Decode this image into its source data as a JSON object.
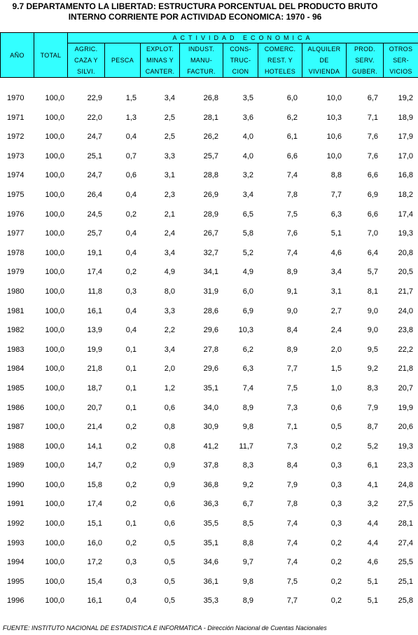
{
  "title": {
    "line1": "9.7 DEPARTAMENTO  LA LIBERTAD: ESTRUCTURA PORCENTUAL DEL PRODUCTO BRUTO",
    "line2": "INTERNO  CORRIENTE POR ACTIVIDAD ECONOMICA: 1970 - 96"
  },
  "header": {
    "year": "AÑO",
    "total": "TOTAL",
    "group": "ACTIVIDAD ECONOMICA",
    "columns": [
      {
        "l1": "AGRIC.",
        "l2": "CAZA Y",
        "l3": "SILVI."
      },
      {
        "l1": "",
        "l2": "PESCA",
        "l3": ""
      },
      {
        "l1": "EXPLOT.",
        "l2": "MINAS Y",
        "l3": "CANTER."
      },
      {
        "l1": "INDUST.",
        "l2": "MANU-",
        "l3": "FACTUR."
      },
      {
        "l1": "CONS-",
        "l2": "TRUC-",
        "l3": "CION"
      },
      {
        "l1": "COMERC.",
        "l2": "REST. Y",
        "l3": "HOTELES"
      },
      {
        "l1": "ALQUILER",
        "l2": "DE",
        "l3": "VIVIENDA"
      },
      {
        "l1": "PROD.",
        "l2": "SERV.",
        "l3": "GUBER."
      },
      {
        "l1": "OTROS",
        "l2": "SER-",
        "l3": "VICIOS"
      }
    ]
  },
  "rows": [
    [
      "1970",
      "100,0",
      "22,9",
      "1,5",
      "3,4",
      "26,8",
      "3,5",
      "6,0",
      "10,0",
      "6,7",
      "19,2"
    ],
    [
      "1971",
      "100,0",
      "22,0",
      "1,3",
      "2,5",
      "28,1",
      "3,6",
      "6,2",
      "10,3",
      "7,1",
      "18,9"
    ],
    [
      "1972",
      "100,0",
      "24,7",
      "0,4",
      "2,5",
      "26,2",
      "4,0",
      "6,1",
      "10,6",
      "7,6",
      "17,9"
    ],
    [
      "1973",
      "100,0",
      "25,1",
      "0,7",
      "3,3",
      "25,7",
      "4,0",
      "6,6",
      "10,0",
      "7,6",
      "17,0"
    ],
    [
      "1974",
      "100,0",
      "24,7",
      "0,6",
      "3,1",
      "28,8",
      "3,2",
      "7,4",
      "8,8",
      "6,6",
      "16,8"
    ],
    [
      "1975",
      "100,0",
      "26,4",
      "0,4",
      "2,3",
      "26,9",
      "3,4",
      "7,8",
      "7,7",
      "6,9",
      "18,2"
    ],
    [
      "1976",
      "100,0",
      "24,5",
      "0,2",
      "2,1",
      "28,9",
      "6,5",
      "7,5",
      "6,3",
      "6,6",
      "17,4"
    ],
    [
      "1977",
      "100,0",
      "25,7",
      "0,4",
      "2,4",
      "26,7",
      "5,8",
      "7,6",
      "5,1",
      "7,0",
      "19,3"
    ],
    [
      "1978",
      "100,0",
      "19,1",
      "0,4",
      "3,4",
      "32,7",
      "5,2",
      "7,4",
      "4,6",
      "6,4",
      "20,8"
    ],
    [
      "1979",
      "100,0",
      "17,4",
      "0,2",
      "4,9",
      "34,1",
      "4,9",
      "8,9",
      "3,4",
      "5,7",
      "20,5"
    ],
    [
      "1980",
      "100,0",
      "11,8",
      "0,3",
      "8,0",
      "31,9",
      "6,0",
      "9,1",
      "3,1",
      "8,1",
      "21,7"
    ],
    [
      "1981",
      "100,0",
      "16,1",
      "0,4",
      "3,3",
      "28,6",
      "6,9",
      "9,0",
      "2,7",
      "9,0",
      "24,0"
    ],
    [
      "1982",
      "100,0",
      "13,9",
      "0,4",
      "2,2",
      "29,6",
      "10,3",
      "8,4",
      "2,4",
      "9,0",
      "23,8"
    ],
    [
      "1983",
      "100,0",
      "19,9",
      "0,1",
      "3,4",
      "27,8",
      "6,2",
      "8,9",
      "2,0",
      "9,5",
      "22,2"
    ],
    [
      "1984",
      "100,0",
      "21,8",
      "0,1",
      "2,0",
      "29,6",
      "6,3",
      "7,7",
      "1,5",
      "9,2",
      "21,8"
    ],
    [
      "1985",
      "100,0",
      "18,7",
      "0,1",
      "1,2",
      "35,1",
      "7,4",
      "7,5",
      "1,0",
      "8,3",
      "20,7"
    ],
    [
      "1986",
      "100,0",
      "20,7",
      "0,1",
      "0,6",
      "34,0",
      "8,9",
      "7,3",
      "0,6",
      "7,9",
      "19,9"
    ],
    [
      "1987",
      "100,0",
      "21,4",
      "0,2",
      "0,8",
      "30,9",
      "9,8",
      "7,1",
      "0,5",
      "8,7",
      "20,6"
    ],
    [
      "1988",
      "100,0",
      "14,1",
      "0,2",
      "0,8",
      "41,2",
      "11,7",
      "7,3",
      "0,2",
      "5,2",
      "19,3"
    ],
    [
      "1989",
      "100,0",
      "14,7",
      "0,2",
      "0,9",
      "37,8",
      "8,3",
      "8,4",
      "0,3",
      "6,1",
      "23,3"
    ],
    [
      "1990",
      "100,0",
      "15,8",
      "0,2",
      "0,9",
      "36,8",
      "9,2",
      "7,9",
      "0,3",
      "4,1",
      "24,8"
    ],
    [
      "1991",
      "100,0",
      "17,4",
      "0,2",
      "0,6",
      "36,3",
      "6,7",
      "7,8",
      "0,3",
      "3,2",
      "27,5"
    ],
    [
      "1992",
      "100,0",
      "15,1",
      "0,1",
      "0,6",
      "35,5",
      "8,5",
      "7,4",
      "0,3",
      "4,4",
      "28,1"
    ],
    [
      "1993",
      "100,0",
      "16,0",
      "0,2",
      "0,5",
      "35,1",
      "8,8",
      "7,4",
      "0,2",
      "4,4",
      "27,4"
    ],
    [
      "1994",
      "100,0",
      "17,2",
      "0,3",
      "0,5",
      "34,6",
      "9,7",
      "7,4",
      "0,2",
      "4,6",
      "25,5"
    ],
    [
      "1995",
      "100,0",
      "15,4",
      "0,3",
      "0,5",
      "36,1",
      "9,8",
      "7,5",
      "0,2",
      "5,1",
      "25,1"
    ],
    [
      "1996",
      "100,0",
      "16,1",
      "0,4",
      "0,5",
      "35,3",
      "8,9",
      "7,7",
      "0,2",
      "5,1",
      "25,8"
    ]
  ],
  "footer": {
    "source_bold": "FUENTE: INSTITUTO NACIONAL DE ESTADISTICA E INFORMATICA",
    "source_rest": " - Dirección Nacional de Cuentas Nacionales"
  },
  "colors": {
    "header_bg": "#33ffff"
  }
}
